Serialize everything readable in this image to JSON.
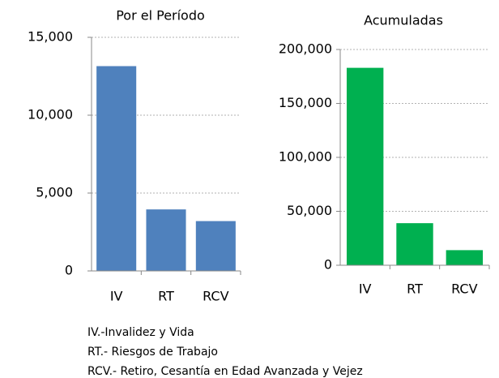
{
  "chart_data": [
    {
      "type": "bar",
      "title": "Por el Período",
      "categories": [
        "IV",
        "RT",
        "RCV"
      ],
      "values": [
        13150,
        3950,
        3200
      ],
      "color": "#4f81bd",
      "ylim": [
        0,
        15000
      ],
      "yticks": [
        0,
        {
          "value": 5000,
          "label": "5,000"
        },
        {
          "value": 10000,
          "label": "10,000"
        },
        {
          "value": 15000,
          "label": "15,000"
        }
      ],
      "grid": true
    },
    {
      "type": "bar",
      "title": "Acumuladas",
      "categories": [
        "IV",
        "RT",
        "RCV"
      ],
      "values": [
        183000,
        39000,
        14000
      ],
      "color": "#00b050",
      "ylim": [
        0,
        200000
      ],
      "yticks": [
        0,
        {
          "value": 50000,
          "label": "50,000"
        },
        {
          "value": 100000,
          "label": "100,000"
        },
        {
          "value": 150000,
          "label": "150,000"
        },
        {
          "value": 200000,
          "label": "200,000"
        }
      ],
      "grid": true
    }
  ],
  "notes": [
    "IV.-Invalidez y Vida",
    "RT.- Riesgos de Trabajo",
    "RCV.- Retiro, Cesantía en Edad Avanzada y Vejez"
  ]
}
